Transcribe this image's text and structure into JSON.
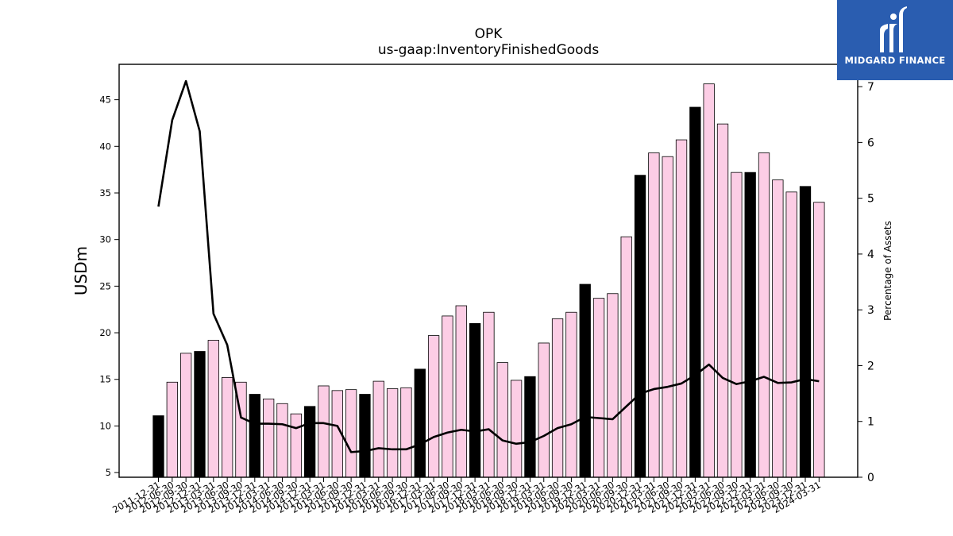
{
  "chart_data": {
    "type": "bar",
    "title": "OPK",
    "subtitle": "us-gaap:InventoryFinishedGoods",
    "ylabel": "USDm",
    "y2label": "Percentage of Assets",
    "ylim": [
      4.5,
      48.8
    ],
    "y2lim": [
      0,
      7.4
    ],
    "yticks": [
      5,
      10,
      15,
      20,
      25,
      30,
      35,
      40,
      45
    ],
    "y2ticks": [
      0,
      1,
      2,
      3,
      4,
      5,
      6,
      7
    ],
    "colors": {
      "annual": "#000000",
      "quarterly": "#fccde5",
      "line": "#000000",
      "edge": "#000000"
    },
    "categories": [
      "2011-12-31",
      "2012-06-30",
      "2012-09-30",
      "2012-12-31",
      "2013-03-31",
      "2013-06-30",
      "2013-09-30",
      "2013-12-31",
      "2014-03-31",
      "2014-06-30",
      "2014-09-30",
      "2014-12-31",
      "2015-03-31",
      "2015-06-30",
      "2015-09-30",
      "2015-12-31",
      "2016-03-31",
      "2016-06-30",
      "2016-09-30",
      "2016-12-31",
      "2017-03-31",
      "2017-06-30",
      "2017-09-30",
      "2017-12-31",
      "2018-03-31",
      "2018-06-30",
      "2018-09-30",
      "2018-12-31",
      "2019-03-31",
      "2019-06-30",
      "2019-09-30",
      "2019-12-31",
      "2020-03-31",
      "2020-06-30",
      "2020-09-30",
      "2020-12-31",
      "2021-03-31",
      "2021-06-30",
      "2021-09-30",
      "2021-12-31",
      "2022-03-31",
      "2022-06-30",
      "2022-09-30",
      "2022-12-31",
      "2023-03-31",
      "2023-06-30",
      "2023-09-30",
      "2023-12-31",
      "2024-03-31"
    ],
    "series": [
      {
        "values": [
          11.1,
          14.7,
          17.8,
          18.0,
          19.2,
          15.2,
          14.7,
          13.4,
          12.9,
          12.4,
          11.3,
          12.1,
          14.3,
          13.8,
          13.9,
          13.4,
          14.8,
          14.0,
          14.1,
          16.1,
          19.7,
          21.8,
          22.9,
          21.0,
          22.2,
          16.8,
          14.9,
          15.3,
          18.9,
          21.5,
          22.2,
          25.2,
          23.7,
          24.2,
          30.3,
          36.9,
          39.3,
          38.9,
          40.7,
          44.2,
          46.7,
          42.4,
          37.2,
          37.2,
          39.3,
          36.4,
          35.1,
          35.7,
          34.0
        ]
      },
      {
        "values": [
          4.85,
          6.4,
          7.1,
          6.2,
          2.93,
          2.37,
          1.07,
          0.96,
          0.96,
          0.95,
          0.88,
          0.97,
          0.97,
          0.92,
          0.45,
          0.47,
          0.52,
          0.5,
          0.5,
          0.59,
          0.72,
          0.8,
          0.85,
          0.82,
          0.86,
          0.66,
          0.6,
          0.63,
          0.74,
          0.88,
          0.95,
          1.08,
          1.06,
          1.04,
          1.27,
          1.5,
          1.58,
          1.62,
          1.68,
          1.83,
          2.02,
          1.78,
          1.67,
          1.72,
          1.8,
          1.69,
          1.7,
          1.76,
          1.72
        ]
      }
    ],
    "annual_flags": [
      1,
      0,
      0,
      1,
      0,
      0,
      0,
      1,
      0,
      0,
      0,
      1,
      0,
      0,
      0,
      1,
      0,
      0,
      0,
      1,
      0,
      0,
      0,
      1,
      0,
      0,
      0,
      1,
      0,
      0,
      0,
      1,
      0,
      0,
      0,
      1,
      0,
      0,
      0,
      1,
      0,
      0,
      0,
      1,
      0,
      0,
      0,
      1,
      0
    ]
  },
  "logo": {
    "text": "MIDGARD FINANCE",
    "icon": "midgard-m-icon"
  }
}
